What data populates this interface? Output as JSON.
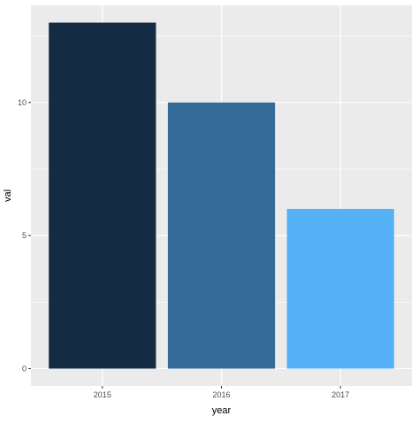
{
  "chart_data": {
    "type": "bar",
    "categories": [
      "2015",
      "2016",
      "2017"
    ],
    "values": [
      13,
      10,
      6
    ],
    "colors": [
      "#132b43",
      "#336a98",
      "#56b1f7"
    ],
    "xlabel": "year",
    "ylabel": "val",
    "ylim": [
      -0.65,
      13.65
    ],
    "yticks": [
      0,
      5,
      10
    ],
    "ytick_labels": [
      "0",
      "5",
      "10"
    ],
    "grid": true,
    "panel_background": "#ebebeb",
    "gridline_color": "#ffffff",
    "legend": "none"
  }
}
